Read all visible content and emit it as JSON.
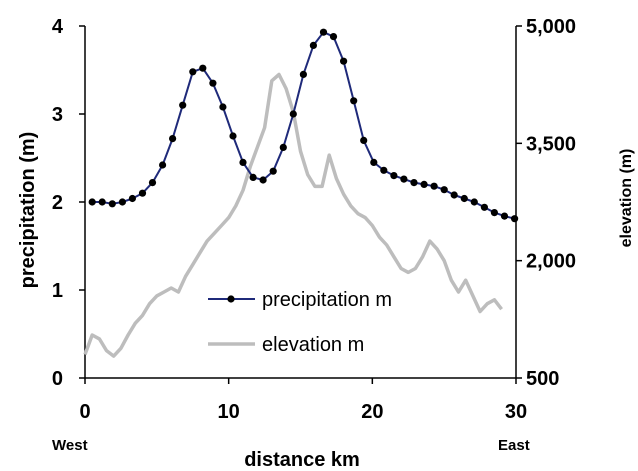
{
  "chart_data": {
    "type": "line",
    "xlabel": "distance km",
    "x_side_labels": {
      "left": "West",
      "right": "East"
    },
    "xlim": [
      0,
      30
    ],
    "x_ticks": [
      0,
      10,
      20,
      30
    ],
    "y_left": {
      "label": "precipitation (m)",
      "lim": [
        0,
        4
      ],
      "ticks": [
        "0",
        "1",
        "2",
        "3",
        "4"
      ]
    },
    "y_right": {
      "label": "elevation (m)",
      "lim": [
        500,
        5000
      ],
      "ticks": [
        "500",
        "2,000",
        "3,500",
        "5,000"
      ],
      "tick_values": [
        500,
        2000,
        3500,
        5000
      ]
    },
    "legend": {
      "placement": "lower-center"
    },
    "series": [
      {
        "name": "precipitation m",
        "axis": "left",
        "color": "#1f2a7a",
        "marker": "circle",
        "x": [
          0.5,
          1.2,
          1.9,
          2.6,
          3.3,
          4.0,
          4.7,
          5.4,
          6.1,
          6.8,
          7.5,
          8.2,
          8.9,
          9.6,
          10.3,
          11.0,
          11.7,
          12.4,
          13.1,
          13.8,
          14.5,
          15.2,
          15.9,
          16.6,
          17.3,
          18.0,
          18.7,
          19.4,
          20.1,
          20.8,
          21.5,
          22.2,
          22.9,
          23.6,
          24.3,
          25.0,
          25.7,
          26.4,
          27.1,
          27.8,
          28.5,
          29.2,
          29.9
        ],
        "values": [
          2.0,
          2.0,
          1.98,
          2.0,
          2.04,
          2.1,
          2.22,
          2.42,
          2.72,
          3.1,
          3.48,
          3.52,
          3.35,
          3.08,
          2.75,
          2.45,
          2.28,
          2.25,
          2.35,
          2.62,
          3.0,
          3.45,
          3.78,
          3.93,
          3.88,
          3.6,
          3.15,
          2.7,
          2.45,
          2.36,
          2.3,
          2.26,
          2.22,
          2.2,
          2.18,
          2.14,
          2.08,
          2.04,
          2.0,
          1.94,
          1.88,
          1.84,
          1.81
        ]
      },
      {
        "name": "elevation m",
        "axis": "right",
        "color": "#bdbdbd",
        "marker": "none",
        "x": [
          0.0,
          0.5,
          1.0,
          1.5,
          2.0,
          2.5,
          3.0,
          3.5,
          4.0,
          4.5,
          5.0,
          5.5,
          6.0,
          6.5,
          7.0,
          7.5,
          8.0,
          8.5,
          9.0,
          9.5,
          10.0,
          10.5,
          11.0,
          11.5,
          12.0,
          12.5,
          13.0,
          13.5,
          14.0,
          14.5,
          15.0,
          15.5,
          16.0,
          16.5,
          17.0,
          17.5,
          18.0,
          18.5,
          19.0,
          19.5,
          20.0,
          20.5,
          21.0,
          21.5,
          22.0,
          22.5,
          23.0,
          23.5,
          24.0,
          24.5,
          25.0,
          25.5,
          26.0,
          26.5,
          27.0,
          27.5,
          28.0,
          28.5,
          29.0
        ],
        "values": [
          800,
          1050,
          1000,
          850,
          780,
          880,
          1050,
          1200,
          1300,
          1450,
          1550,
          1600,
          1650,
          1600,
          1800,
          1950,
          2100,
          2250,
          2350,
          2450,
          2550,
          2700,
          2900,
          3200,
          3450,
          3700,
          4300,
          4380,
          4200,
          3900,
          3400,
          3100,
          2950,
          2950,
          3350,
          3050,
          2850,
          2700,
          2600,
          2550,
          2450,
          2300,
          2200,
          2050,
          1900,
          1850,
          1900,
          2050,
          2250,
          2150,
          2000,
          1750,
          1600,
          1750,
          1550,
          1350,
          1450,
          1500,
          1380
        ]
      }
    ]
  }
}
